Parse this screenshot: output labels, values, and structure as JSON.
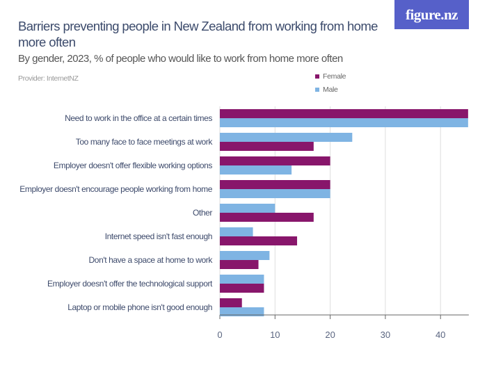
{
  "brand": {
    "logo_text": "figure.nz",
    "logo_color": "#5660c9"
  },
  "header": {
    "title": "Barriers preventing people in New Zealand from working from home more often",
    "subtitle": "By gender, 2023, % of people who would like to work from home more often",
    "provider": "Provider: InternetNZ"
  },
  "chart_data": {
    "type": "bar",
    "orientation": "horizontal",
    "title": "Barriers preventing people in New Zealand from working from home more often",
    "subtitle": "By gender, 2023, % of people who would like to work from home more often",
    "xlim": [
      0,
      45
    ],
    "ticks": [
      0,
      10,
      20,
      30,
      40
    ],
    "grid": true,
    "legend": {
      "placement": "top-right",
      "entries": [
        {
          "name": "Female",
          "color": "#88166b"
        },
        {
          "name": "Male",
          "color": "#7fb4e3"
        }
      ]
    },
    "categories": [
      {
        "label": "Need to work in the office at a certain times",
        "bars": [
          {
            "series": "Female",
            "value": 45
          },
          {
            "series": "Male",
            "value": 45
          }
        ]
      },
      {
        "label": "Too many face to face meetings at work",
        "bars": [
          {
            "series": "Male",
            "value": 24
          },
          {
            "series": "Female",
            "value": 17
          }
        ]
      },
      {
        "label": "Employer doesn't offer flexible working options",
        "bars": [
          {
            "series": "Female",
            "value": 20
          },
          {
            "series": "Male",
            "value": 13
          }
        ]
      },
      {
        "label": "Employer doesn't encourage people working from home",
        "bars": [
          {
            "series": "Female",
            "value": 20
          },
          {
            "series": "Male",
            "value": 20
          }
        ]
      },
      {
        "label": "Other",
        "bars": [
          {
            "series": "Male",
            "value": 10
          },
          {
            "series": "Female",
            "value": 17
          }
        ]
      },
      {
        "label": "Internet speed isn't fast enough",
        "bars": [
          {
            "series": "Male",
            "value": 6
          },
          {
            "series": "Female",
            "value": 14
          }
        ]
      },
      {
        "label": "Don't have a space at home to work",
        "bars": [
          {
            "series": "Male",
            "value": 9
          },
          {
            "series": "Female",
            "value": 7
          }
        ]
      },
      {
        "label": "Employer doesn't offer the technological support",
        "bars": [
          {
            "series": "Male",
            "value": 8
          },
          {
            "series": "Female",
            "value": 8
          }
        ]
      },
      {
        "label": "Laptop or mobile phone isn't good enough",
        "bars": [
          {
            "series": "Female",
            "value": 4
          },
          {
            "series": "Male",
            "value": 8
          }
        ]
      }
    ]
  }
}
